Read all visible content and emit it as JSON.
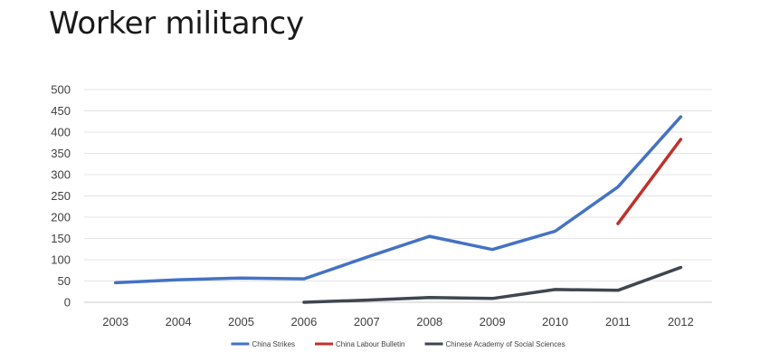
{
  "slide": {
    "title": "Worker militancy"
  },
  "chart_data": {
    "type": "line",
    "title": "",
    "xlabel": "",
    "ylabel": "",
    "categories": [
      "2003",
      "2004",
      "2005",
      "2006",
      "2007",
      "2008",
      "2009",
      "2010",
      "2011",
      "2012"
    ],
    "ylim": [
      0,
      500
    ],
    "yticks": [
      "0",
      "50",
      "100",
      "150",
      "200",
      "250",
      "300",
      "350",
      "400",
      "450",
      "500"
    ],
    "grid": true,
    "legend_position": "bottom",
    "series": [
      {
        "name": "China Strikes",
        "color": "#4472c4",
        "values": [
          46,
          53,
          57,
          55,
          106,
          155,
          124,
          167,
          271,
          436
        ]
      },
      {
        "name": "China Labour Bulletin",
        "color": "#c0302a",
        "values": [
          null,
          null,
          null,
          null,
          null,
          null,
          null,
          null,
          185,
          383
        ]
      },
      {
        "name": "Chinese Academy of Social Sciences",
        "color": "#3f4650",
        "values": [
          null,
          null,
          null,
          0,
          5,
          11,
          9,
          30,
          28,
          82
        ]
      }
    ]
  }
}
